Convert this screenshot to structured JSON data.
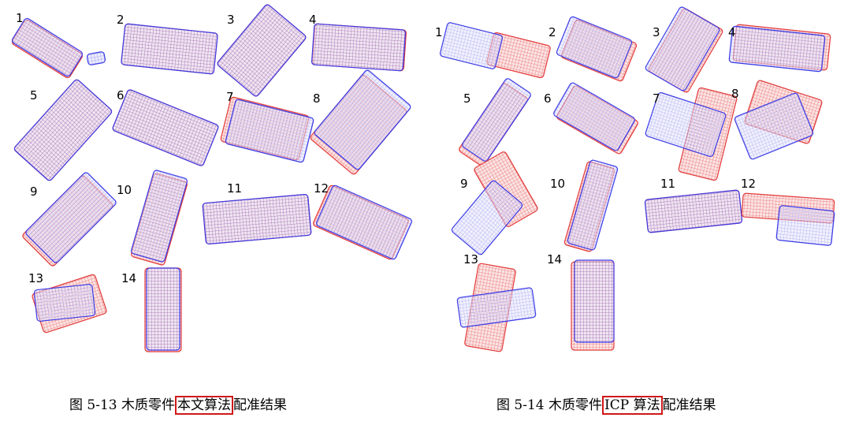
{
  "figures": [
    {
      "name": "fig-5-13",
      "caption": {
        "prefix": "图 5-13  木质零件",
        "highlight": "本文算法",
        "suffix": "配准结果"
      },
      "colors": {
        "source": "#3a3ae6",
        "target": "#e23a3a",
        "highlight_box": "#d01818"
      },
      "panels": [
        {
          "label": "1"
        },
        {
          "label": "2"
        },
        {
          "label": "3"
        },
        {
          "label": "4"
        },
        {
          "label": "5"
        },
        {
          "label": "6"
        },
        {
          "label": "7"
        },
        {
          "label": "8"
        },
        {
          "label": "9"
        },
        {
          "label": "10"
        },
        {
          "label": "11"
        },
        {
          "label": "12"
        },
        {
          "label": "13"
        },
        {
          "label": "14"
        }
      ]
    },
    {
      "name": "fig-5-14",
      "caption": {
        "prefix": "图 5-14  木质零件",
        "highlight": "ICP 算法",
        "suffix": "配准结果"
      },
      "colors": {
        "source": "#3a3ae6",
        "target": "#e23a3a",
        "highlight_box": "#d01818"
      },
      "panels": [
        {
          "label": "1"
        },
        {
          "label": "2"
        },
        {
          "label": "3"
        },
        {
          "label": "4"
        },
        {
          "label": "5"
        },
        {
          "label": "6"
        },
        {
          "label": "7"
        },
        {
          "label": "8"
        },
        {
          "label": "9"
        },
        {
          "label": "10"
        },
        {
          "label": "11"
        },
        {
          "label": "12"
        },
        {
          "label": "13"
        },
        {
          "label": "14"
        }
      ]
    }
  ]
}
